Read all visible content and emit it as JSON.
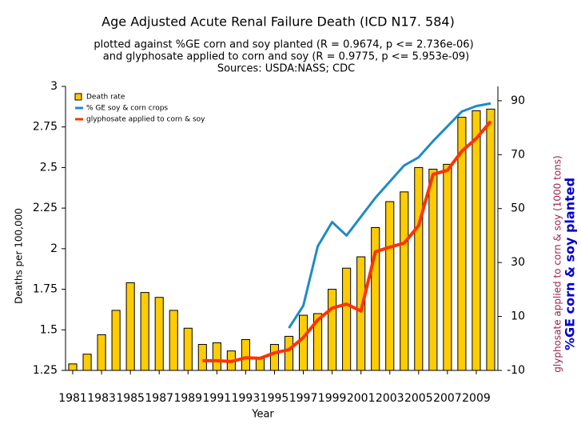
{
  "chart_data": {
    "type": "bar",
    "title": "Age Adjusted Acute Renal Failure Death (ICD N17. 584)",
    "subtitle": [
      "plotted against %GE corn and soy planted (R = 0.9674, p <= 2.736e-06)",
      "and glyphosate applied to corn and soy (R = 0.9775, p <= 5.953e-09)",
      "Sources: USDA:NASS; CDC"
    ],
    "xlabel": "Year",
    "ylabel": "Deaths per 100,000",
    "y2label": "%GE corn & soy planted",
    "y2label_secondary": "glyphosate applied to corn & soy (1000 tons)",
    "x": [
      1981,
      1982,
      1983,
      1984,
      1985,
      1986,
      1987,
      1988,
      1989,
      1990,
      1991,
      1992,
      1993,
      1994,
      1995,
      1996,
      1997,
      1998,
      1999,
      2000,
      2001,
      2002,
      2003,
      2004,
      2005,
      2006,
      2007,
      2008,
      2009,
      2010
    ],
    "xlim": [
      1980.5,
      2010.5
    ],
    "xticks": [
      1981,
      1983,
      1985,
      1987,
      1989,
      1991,
      1993,
      1995,
      1997,
      1999,
      2001,
      2003,
      2005,
      2007,
      2009
    ],
    "ylim": [
      1.25,
      3
    ],
    "yticks": [
      1.25,
      1.5,
      1.75,
      2,
      2.25,
      2.5,
      2.75,
      3
    ],
    "y2lim": [
      -10,
      95.3
    ],
    "y2ticks": [
      -10,
      10,
      30,
      50,
      70,
      90
    ],
    "grid": false,
    "legend": "top-left",
    "series": [
      {
        "name": "Death rate",
        "type": "bar",
        "color": "#ffcc00",
        "values": [
          1.29,
          1.35,
          1.47,
          1.62,
          1.79,
          1.73,
          1.7,
          1.62,
          1.51,
          1.41,
          1.42,
          1.37,
          1.44,
          1.33,
          1.41,
          1.46,
          1.59,
          1.6,
          1.75,
          1.88,
          1.95,
          2.13,
          2.29,
          2.35,
          2.5,
          2.49,
          2.52,
          2.81,
          2.85,
          2.86
        ]
      },
      {
        "name": "% GE soy & corn crops",
        "type": "line",
        "axis": "y2",
        "color": "#1f8ac9",
        "values": [
          null,
          null,
          null,
          null,
          null,
          null,
          null,
          null,
          null,
          null,
          null,
          null,
          null,
          null,
          null,
          5.7,
          14,
          36,
          45,
          40,
          47,
          54,
          60,
          66,
          69,
          75,
          80.5,
          86,
          88,
          89
        ]
      },
      {
        "name": "glyphosate applied to corn & soy",
        "type": "line",
        "axis": "y2",
        "color": "#ff3300",
        "values": [
          null,
          null,
          null,
          null,
          null,
          null,
          null,
          null,
          null,
          -6.4,
          -6.4,
          -6.7,
          -5.3,
          -5.5,
          -3.5,
          -2.3,
          2.2,
          8.7,
          13.1,
          14.6,
          12,
          34,
          35.7,
          37.2,
          43.7,
          62.7,
          64.2,
          71.3,
          76,
          82.3
        ]
      }
    ]
  }
}
